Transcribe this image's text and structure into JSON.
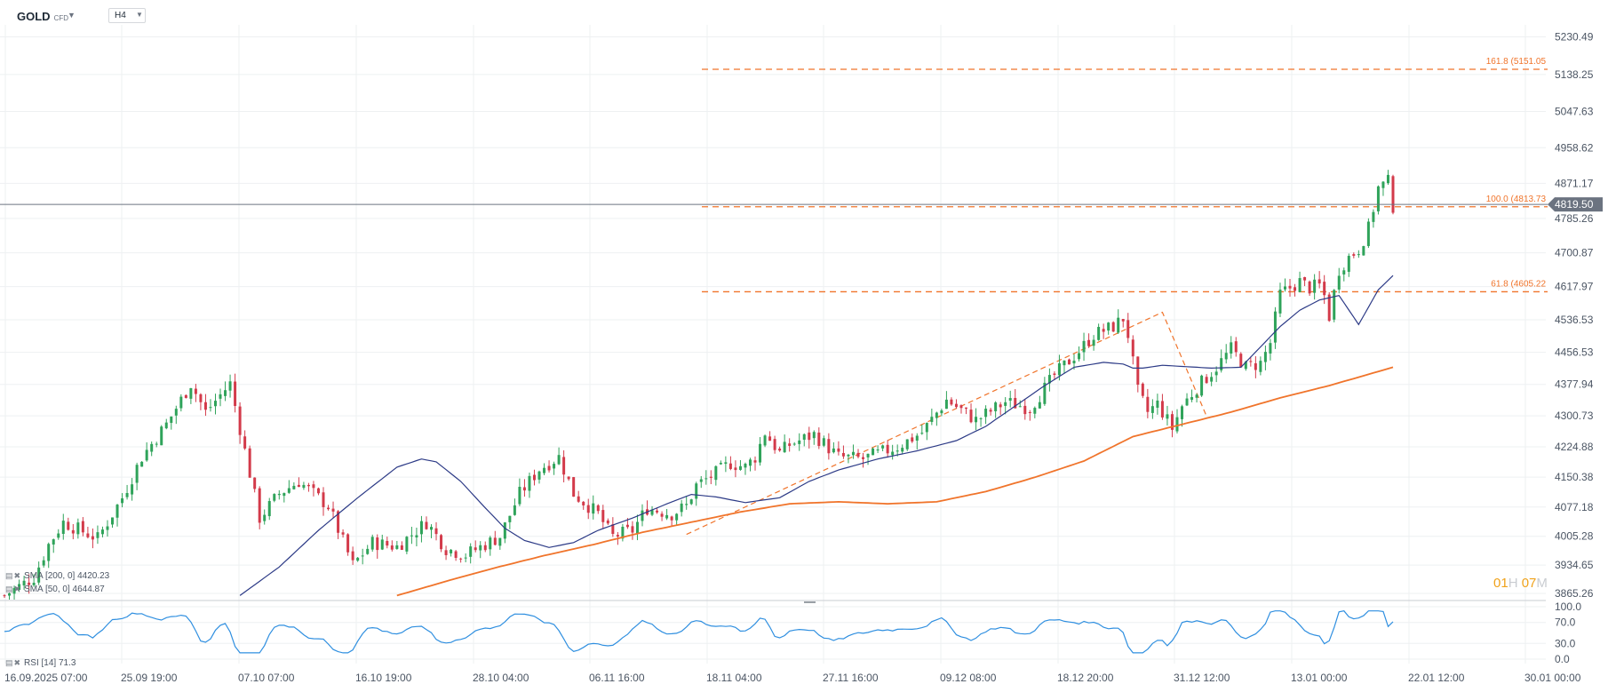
{
  "header": {
    "symbol": "GOLD",
    "instrument_type": "CFD",
    "timeframe": "H4"
  },
  "legend": {
    "sma200": "SMA [200, 0] 4420.23",
    "sma50": "SMA [50, 0] 4644.87",
    "rsi": "RSI [14] 71.3"
  },
  "timer": {
    "hours": "01",
    "hours_unit": "H",
    "minutes": "07",
    "minutes_unit": "M"
  },
  "colors": {
    "up": "#2fa35a",
    "down": "#d33a4a",
    "sma200": "#f0742b",
    "sma50": "#2c3a86",
    "fib": "#f0742b",
    "rsi": "#2f8fe0",
    "price_tag": "#6b7380",
    "grid": "#eef0f2"
  },
  "chart_data": {
    "type": "candlestick",
    "instrument": "GOLD",
    "timeframe": "H4",
    "y_ticks": [
      "5230.49",
      "5138.25",
      "5047.63",
      "4958.62",
      "4871.17",
      "4785.26",
      "4700.87",
      "4617.97",
      "4536.53",
      "4456.53",
      "4377.94",
      "4300.73",
      "4224.88",
      "4150.38",
      "4077.18",
      "4005.28",
      "3934.65",
      "3865.26"
    ],
    "x_ticks": [
      "16.09.2025  07:00",
      "25.09  19:00",
      "07.10  07:00",
      "16.10  19:00",
      "28.10  04:00",
      "06.11  16:00",
      "18.11  04:00",
      "27.11  16:00",
      "09.12  08:00",
      "18.12  20:00",
      "31.12  12:00",
      "13.01  00:00",
      "22.01  12:00",
      "30.01  00:00"
    ],
    "current_price": "4819.50",
    "fibonacci": [
      {
        "label": "161.8 (5151.05",
        "level": 161.8,
        "price": 5151.05
      },
      {
        "label": "100.0 (4813.73",
        "level": 100.0,
        "price": 4813.73
      },
      {
        "label": "61.8 (4605.22",
        "level": 61.8,
        "price": 4605.22
      }
    ],
    "price_path_t": [
      0,
      6,
      9,
      12,
      19,
      24,
      28,
      33,
      38,
      41,
      46,
      52,
      56,
      60,
      66,
      71,
      75,
      80,
      86,
      90,
      94,
      101,
      105,
      109,
      113,
      116,
      121,
      123,
      124,
      128,
      131,
      136,
      139,
      141,
      145,
      148,
      151,
      153,
      155,
      158,
      160,
      165,
      170,
      175,
      182,
      187,
      192,
      198,
      204,
      209,
      214,
      219,
      222,
      226,
      228,
      229,
      231,
      233,
      235,
      238,
      240,
      243,
      247,
      250,
      253,
      256,
      258,
      260,
      262,
      264,
      266,
      268,
      269,
      270,
      272,
      274,
      276,
      278,
      280,
      282,
      283
    ],
    "price_path": [
      3860,
      3905,
      3985,
      4040,
      4000,
      4100,
      4200,
      4280,
      4380,
      4310,
      4380,
      4050,
      4110,
      4140,
      4080,
      3935,
      3990,
      3980,
      4040,
      3975,
      3960,
      4005,
      4110,
      4170,
      4200,
      4110,
      4060,
      4020,
      4005,
      4020,
      4075,
      4060,
      4080,
      4130,
      4160,
      4185,
      4175,
      4200,
      4260,
      4210,
      4230,
      4255,
      4200,
      4195,
      4225,
      4260,
      4340,
      4290,
      4335,
      4320,
      4400,
      4460,
      4500,
      4520,
      4540,
      4500,
      4360,
      4310,
      4330,
      4270,
      4325,
      4370,
      4420,
      4465,
      4420,
      4430,
      4480,
      4600,
      4615,
      4630,
      4615,
      4620,
      4595,
      4545,
      4660,
      4690,
      4710,
      4760,
      4860,
      4875,
      4815
    ],
    "sma50_t": [
      48,
      56,
      64,
      72,
      80,
      85,
      88,
      93,
      98,
      102,
      106,
      111,
      116,
      121,
      128,
      135,
      140,
      145,
      151,
      158,
      164,
      170,
      178,
      186,
      194,
      200,
      206,
      212,
      218,
      224,
      228,
      230,
      232,
      236,
      240,
      246,
      252,
      256,
      260,
      264,
      268,
      272,
      276,
      280,
      283
    ],
    "sma50": [
      3860,
      3930,
      4020,
      4100,
      4175,
      4195,
      4188,
      4140,
      4075,
      4025,
      3995,
      3978,
      3990,
      4020,
      4050,
      4085,
      4108,
      4102,
      4088,
      4100,
      4140,
      4168,
      4195,
      4215,
      4240,
      4275,
      4325,
      4375,
      4420,
      4432,
      4428,
      4418,
      4418,
      4425,
      4422,
      4418,
      4420,
      4470,
      4520,
      4560,
      4585,
      4596,
      4525,
      4610,
      4645
    ],
    "sma200_t": [
      80,
      90,
      100,
      110,
      120,
      130,
      140,
      150,
      160,
      170,
      180,
      190,
      200,
      210,
      220,
      230,
      240,
      250,
      260,
      270,
      283
    ],
    "sma200": [
      3860,
      3895,
      3928,
      3958,
      3985,
      4015,
      4040,
      4065,
      4085,
      4090,
      4085,
      4090,
      4115,
      4150,
      4190,
      4250,
      4280,
      4310,
      4345,
      4375,
      4420
    ],
    "rsi_range": [
      0,
      100
    ],
    "rsi_ticks": [
      "100.0",
      "70.0",
      "30.0",
      "0.0"
    ],
    "rsi_last": 71.3
  }
}
